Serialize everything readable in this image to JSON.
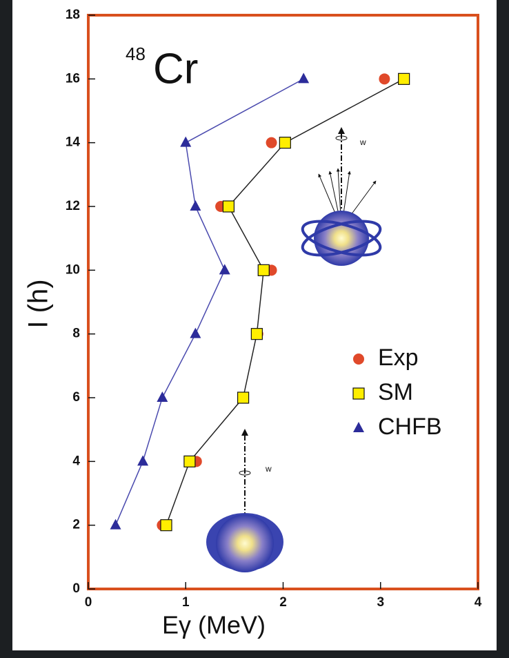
{
  "chart_data": {
    "type": "scatter",
    "x_label": "Eγ (MeV)",
    "y_label": "I (h)",
    "annotation": {
      "superscript": "48",
      "text": "Cr"
    },
    "illustration_labels": [
      "w",
      "w"
    ],
    "xlim": [
      0,
      4
    ],
    "xticks": [
      0,
      1,
      2,
      3,
      4
    ],
    "ylim": [
      0,
      18
    ],
    "yticks": [
      0,
      2,
      4,
      6,
      8,
      10,
      12,
      14,
      16,
      18
    ],
    "frame_color": "#d9501e",
    "legend": "right",
    "y": [
      2,
      4,
      6,
      8,
      10,
      12,
      14,
      16
    ],
    "series": [
      {
        "name": "Exp",
        "color": "#e0492a",
        "marker": "circle",
        "line": false,
        "line_color": "#000000",
        "x": [
          0.76,
          1.11,
          1.59,
          1.74,
          1.88,
          1.36,
          1.88,
          3.04
        ]
      },
      {
        "name": "SM",
        "color": "#ffee00",
        "marker": "square",
        "line": true,
        "line_color": "#222222",
        "x": [
          0.8,
          1.04,
          1.59,
          1.73,
          1.8,
          1.44,
          2.02,
          3.24
        ]
      },
      {
        "name": "CHFB",
        "color": "#2c2c9a",
        "marker": "triangle",
        "line": true,
        "line_color": "#4a4aae",
        "x": [
          0.28,
          0.56,
          0.76,
          1.1,
          1.4,
          1.1,
          1.0,
          2.21
        ]
      }
    ]
  }
}
